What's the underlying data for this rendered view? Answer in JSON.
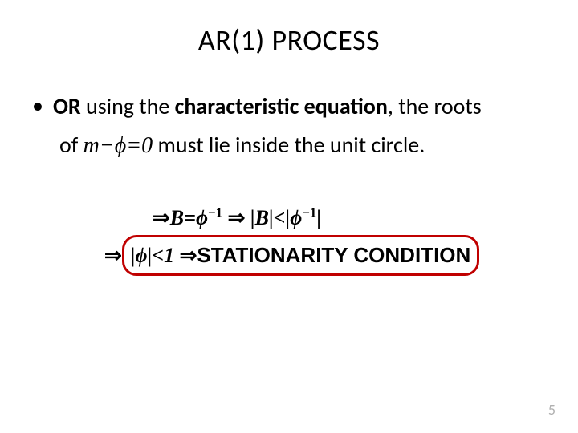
{
  "title": "AR(1) PROCESS",
  "bullet": "•",
  "line1_pre": "OR",
  "line1_mid": " using the ",
  "line1_bold": "characteristic equation",
  "line1_post": ", the roots",
  "line2_pre": "of ",
  "line2_math": "m−ϕ=0",
  "line2_post": " must lie inside the unit circle.",
  "math1_a": "⇒",
  "math1_b": "B=ϕ",
  "math1_sup1": "−1",
  "math1_c": " ⇒ |B|<|ϕ",
  "math1_sup2": "−1",
  "math1_d": "|",
  "math2_a": "⇒",
  "math2_b": "|ϕ|<1 ",
  "math2_c": "⇒",
  "math2_d": "STATIONARITY CONDITION",
  "slide_number": "5",
  "colors": {
    "box_border": "#c00000",
    "slidenum": "#b0b0b0",
    "text": "#000000",
    "background": "#ffffff"
  }
}
